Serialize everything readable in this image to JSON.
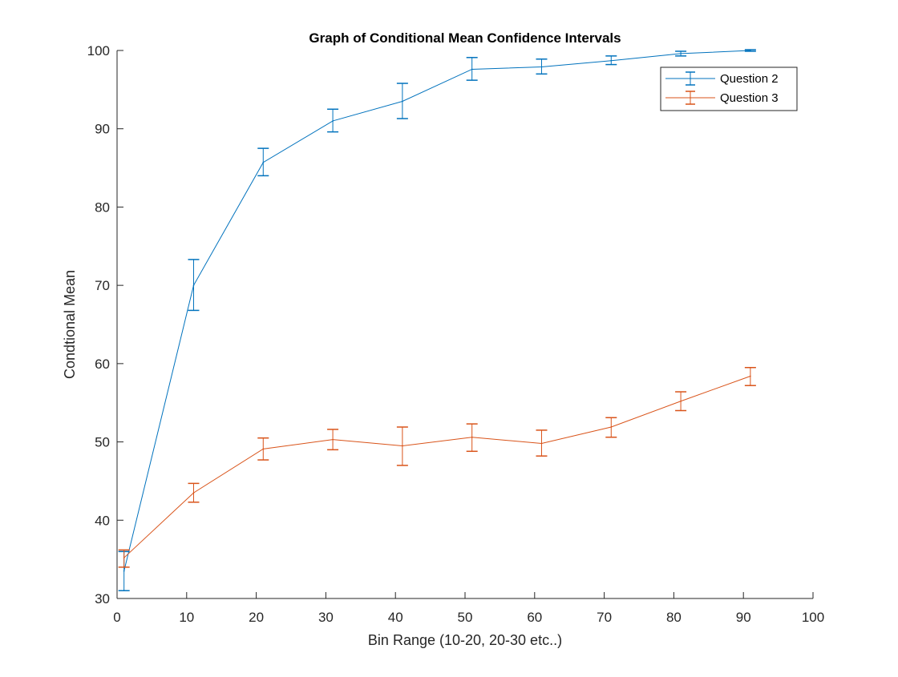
{
  "chart_data": {
    "type": "line",
    "title": "Graph of Conditional Mean Confidence Intervals",
    "xlabel": "Bin Range (10-20, 20-30 etc..)",
    "ylabel": "Condtional Mean",
    "xlim": [
      0,
      100
    ],
    "ylim": [
      30,
      100
    ],
    "xticks": [
      0,
      10,
      20,
      30,
      40,
      50,
      60,
      70,
      80,
      90,
      100
    ],
    "yticks": [
      30,
      40,
      50,
      60,
      70,
      80,
      90,
      100
    ],
    "grid": false,
    "legend_position": "top-right",
    "error_bars": true,
    "x": [
      1,
      11,
      21,
      31,
      41,
      51,
      61,
      71,
      81,
      91
    ],
    "series": [
      {
        "name": "Question 2",
        "color": "#0072BD",
        "values": [
          33.5,
          70.0,
          85.7,
          91.0,
          93.5,
          97.6,
          97.9,
          98.7,
          99.6,
          100.0
        ],
        "lower": [
          31.0,
          66.8,
          84.0,
          89.6,
          91.3,
          96.2,
          97.0,
          98.2,
          99.3,
          99.9
        ],
        "upper": [
          36.0,
          73.3,
          87.5,
          92.5,
          95.8,
          99.1,
          98.9,
          99.3,
          99.9,
          100.1
        ]
      },
      {
        "name": "Question 3",
        "color": "#D95319",
        "values": [
          35.2,
          43.5,
          49.1,
          50.3,
          49.5,
          50.6,
          49.8,
          51.9,
          55.2,
          58.4
        ],
        "lower": [
          34.0,
          42.3,
          47.7,
          49.0,
          47.0,
          48.8,
          48.2,
          50.6,
          54.0,
          57.2
        ],
        "upper": [
          36.2,
          44.7,
          50.5,
          51.6,
          51.9,
          52.3,
          51.5,
          53.1,
          56.4,
          59.5
        ]
      }
    ]
  }
}
